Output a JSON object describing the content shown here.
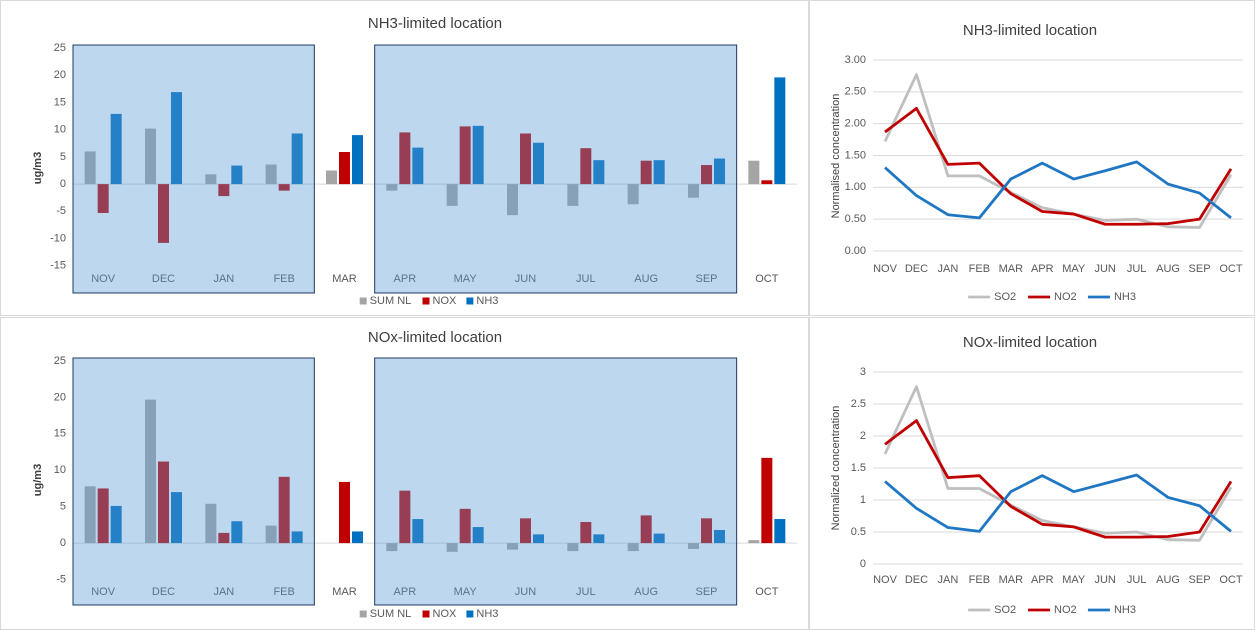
{
  "chart_data": [
    {
      "type": "bar",
      "title": "NH3-limited location",
      "y_label": "ug/m3",
      "categories": [
        "NOV",
        "DEC",
        "JAN",
        "FEB",
        "MAR",
        "APR",
        "MAY",
        "JUN",
        "JUL",
        "AUG",
        "SEP",
        "OCT"
      ],
      "series": [
        {
          "name": "SUM NL",
          "color": "#a5a5a5",
          "values": [
            6.0,
            10.2,
            1.8,
            3.6,
            2.5,
            -1.2,
            -4.0,
            -5.7,
            -4.0,
            -3.7,
            -2.5,
            4.3
          ]
        },
        {
          "name": "NOX",
          "color": "#c00000",
          "values": [
            -5.3,
            -10.8,
            -2.2,
            -1.2,
            5.9,
            9.5,
            10.6,
            9.3,
            6.6,
            4.3,
            3.5,
            0.7
          ]
        },
        {
          "name": "NH3",
          "color": "#0070c0",
          "values": [
            12.9,
            16.9,
            3.4,
            9.3,
            9.0,
            6.7,
            10.7,
            7.6,
            4.4,
            4.4,
            4.7,
            19.6
          ]
        }
      ],
      "ylim": [
        -20,
        25
      ],
      "yticks": [
        -15,
        -10,
        -5,
        0,
        5,
        10,
        15,
        20,
        25
      ],
      "shaded_ranges": [
        [
          "NOV",
          "FEB"
        ],
        [
          "APR",
          "SEP"
        ]
      ],
      "legend": "bottom"
    },
    {
      "type": "line",
      "title": "NH3-limited location",
      "y_label": "Normalised concentration",
      "categories": [
        "NOV",
        "DEC",
        "JAN",
        "FEB",
        "MAR",
        "APR",
        "MAY",
        "JUN",
        "JUL",
        "AUG",
        "SEP",
        "OCT"
      ],
      "series": [
        {
          "name": "SO2",
          "color": "#bfbfbf",
          "values": [
            1.72,
            2.77,
            1.18,
            1.18,
            0.92,
            0.68,
            0.58,
            0.48,
            0.5,
            0.38,
            0.37,
            1.2
          ]
        },
        {
          "name": "NO2",
          "color": "#c00000",
          "values": [
            1.87,
            2.24,
            1.36,
            1.38,
            0.9,
            0.62,
            0.58,
            0.42,
            0.42,
            0.43,
            0.5,
            1.29
          ]
        },
        {
          "name": "NH3",
          "color": "#1f77c4",
          "values": [
            1.31,
            0.87,
            0.57,
            0.52,
            1.13,
            1.38,
            1.13,
            1.26,
            1.4,
            1.05,
            0.91,
            0.52
          ]
        }
      ],
      "ylim": [
        0,
        3
      ],
      "yticks": [
        {
          "value": 0,
          "label": "0.00"
        },
        {
          "value": 0.5,
          "label": "0.50"
        },
        {
          "value": 1,
          "label": "1.00"
        },
        {
          "value": 1.5,
          "label": "1.50"
        },
        {
          "value": 2,
          "label": "2.00"
        },
        {
          "value": 2.5,
          "label": "2.50"
        },
        {
          "value": 3,
          "label": "3.00"
        }
      ],
      "grid": true,
      "legend": "bottom"
    },
    {
      "type": "bar",
      "title": "NOx-limited location",
      "y_label": "ug/m3",
      "categories": [
        "NOV",
        "DEC",
        "JAN",
        "FEB",
        "MAR",
        "APR",
        "MAY",
        "JUN",
        "JUL",
        "AUG",
        "SEP",
        "OCT"
      ],
      "series": [
        {
          "name": "SUM NL",
          "color": "#a5a5a5",
          "values": [
            7.8,
            19.7,
            5.4,
            2.4,
            0,
            -1.1,
            -1.2,
            -0.9,
            -1.1,
            -1.1,
            -0.8,
            0.4
          ]
        },
        {
          "name": "NOX",
          "color": "#c00000",
          "values": [
            7.5,
            11.2,
            1.4,
            9.1,
            8.4,
            7.2,
            4.7,
            3.4,
            2.9,
            3.8,
            3.4,
            11.7
          ]
        },
        {
          "name": "NH3",
          "color": "#0070c0",
          "values": [
            5.1,
            7.0,
            3.0,
            1.6,
            1.6,
            3.3,
            2.2,
            1.2,
            1.2,
            1.3,
            1.8,
            3.3
          ]
        }
      ],
      "ylim": [
        -8.5,
        25
      ],
      "yticks": [
        -5,
        0,
        5,
        10,
        15,
        20,
        25
      ],
      "shaded_ranges": [
        [
          "NOV",
          "FEB"
        ],
        [
          "APR",
          "SEP"
        ]
      ],
      "legend": "bottom"
    },
    {
      "type": "line",
      "title": "NOx-limited location",
      "y_label": "Normalized concentration",
      "categories": [
        "NOV",
        "DEC",
        "JAN",
        "FEB",
        "MAR",
        "APR",
        "MAY",
        "JUN",
        "JUL",
        "AUG",
        "SEP",
        "OCT"
      ],
      "series": [
        {
          "name": "SO2",
          "color": "#bfbfbf",
          "values": [
            1.72,
            2.77,
            1.18,
            1.18,
            0.92,
            0.68,
            0.58,
            0.48,
            0.5,
            0.38,
            0.37,
            1.2
          ]
        },
        {
          "name": "NO2",
          "color": "#c00000",
          "values": [
            1.87,
            2.24,
            1.35,
            1.38,
            0.9,
            0.62,
            0.58,
            0.42,
            0.42,
            0.43,
            0.5,
            1.29
          ]
        },
        {
          "name": "NH3",
          "color": "#1f77c4",
          "values": [
            1.29,
            0.87,
            0.57,
            0.51,
            1.13,
            1.38,
            1.13,
            1.26,
            1.39,
            1.04,
            0.91,
            0.51
          ]
        }
      ],
      "ylim": [
        0,
        3
      ],
      "yticks": [
        0,
        0.5,
        1,
        1.5,
        2,
        2.5,
        3
      ],
      "grid": true,
      "legend": "bottom"
    }
  ]
}
